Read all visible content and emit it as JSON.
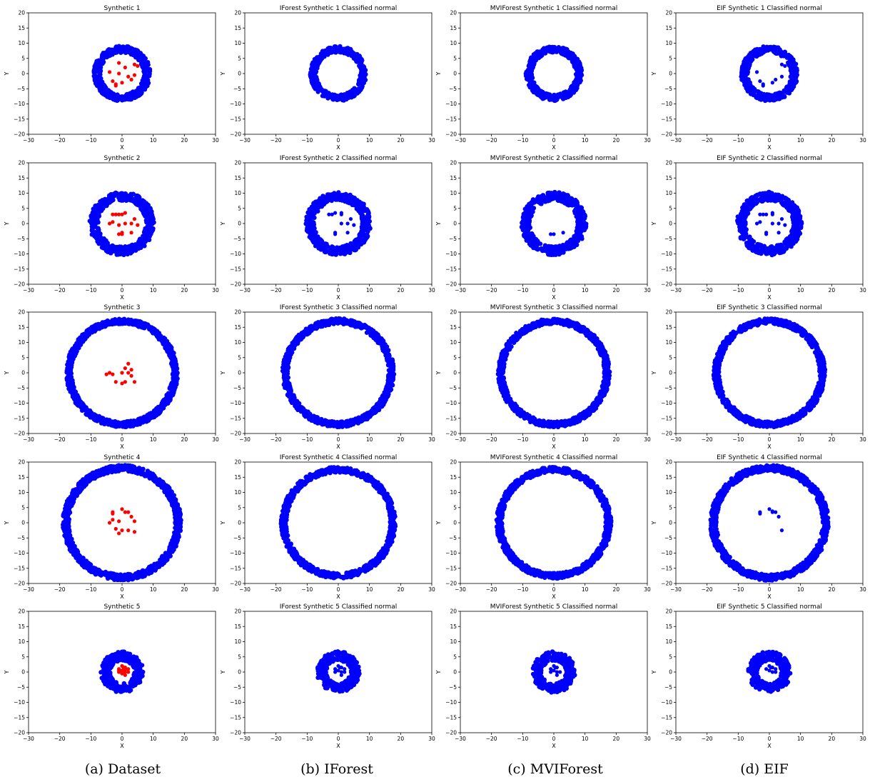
{
  "columns": [
    {
      "caption": "(a) Dataset"
    },
    {
      "caption": "(b) IForest"
    },
    {
      "caption": "(c) MVIForest"
    },
    {
      "caption": "(d) EIF"
    }
  ],
  "colors": {
    "normal": "#0000ff",
    "anomaly": "#ff0000"
  },
  "chart_data": [
    {
      "type": "scatter",
      "title": "Synthetic 1",
      "xlabel": "X",
      "ylabel": "Y",
      "xlim": [
        -30,
        30
      ],
      "ylim": [
        -20,
        20
      ],
      "xticks": [
        -30,
        -20,
        -10,
        0,
        10,
        20,
        30
      ],
      "yticks": [
        -20,
        -15,
        -10,
        -5,
        0,
        5,
        10,
        15,
        20
      ],
      "ring": {
        "radius": 8,
        "width": 2.2
      },
      "points_color": "anomaly",
      "points": [
        [
          -4,
          0.5
        ],
        [
          -1,
          3.5
        ],
        [
          4,
          3
        ],
        [
          5,
          2.5
        ],
        [
          1,
          2
        ],
        [
          -3,
          -2.5
        ],
        [
          -2,
          -3.5
        ],
        [
          -1,
          0
        ],
        [
          2,
          -1
        ],
        [
          3,
          -2
        ],
        [
          0,
          -3
        ],
        [
          4,
          -0.5
        ],
        [
          -2,
          -4
        ]
      ]
    },
    {
      "type": "scatter",
      "title": "IForest Synthetic 1 Classified normal",
      "xlabel": "X",
      "ylabel": "Y",
      "xlim": [
        -30,
        30
      ],
      "ylim": [
        -20,
        20
      ],
      "xticks": [
        -30,
        -20,
        -10,
        0,
        10,
        20,
        30
      ],
      "yticks": [
        -20,
        -15,
        -10,
        -5,
        0,
        5,
        10,
        15,
        20
      ],
      "ring": {
        "radius": 8,
        "width": 2
      },
      "points_color": "normal",
      "points": []
    },
    {
      "type": "scatter",
      "title": "MVIForest Synthetic 1 Classified normal",
      "xlabel": "X",
      "ylabel": "Y",
      "xlim": [
        -30,
        30
      ],
      "ylim": [
        -20,
        20
      ],
      "xticks": [
        -30,
        -20,
        -10,
        0,
        10,
        20,
        30
      ],
      "yticks": [
        -20,
        -15,
        -10,
        -5,
        0,
        5,
        10,
        15,
        20
      ],
      "ring": {
        "radius": 8,
        "width": 2
      },
      "points_color": "normal",
      "points": []
    },
    {
      "type": "scatter",
      "title": "EIF Synthetic 1 Classified normal",
      "xlabel": "X",
      "ylabel": "Y",
      "xlim": [
        -30,
        30
      ],
      "ylim": [
        -20,
        20
      ],
      "xticks": [
        -30,
        -20,
        -10,
        0,
        10,
        20,
        30
      ],
      "yticks": [
        -20,
        -15,
        -10,
        -5,
        0,
        5,
        10,
        15,
        20
      ],
      "ring": {
        "radius": 8,
        "width": 2.2
      },
      "points_color": "normal",
      "points": [
        [
          -4,
          0.5
        ],
        [
          4,
          3
        ],
        [
          5,
          2.5
        ],
        [
          1,
          -3
        ],
        [
          2,
          -2
        ],
        [
          -3,
          -2.5
        ],
        [
          -2,
          -3.5
        ],
        [
          4,
          -1
        ],
        [
          -2,
          -4
        ]
      ]
    },
    {
      "type": "scatter",
      "title": "Synthetic 2",
      "xlabel": "X",
      "ylabel": "Y",
      "xlim": [
        -30,
        30
      ],
      "ylim": [
        -20,
        20
      ],
      "xticks": [
        -30,
        -20,
        -10,
        0,
        10,
        20,
        30
      ],
      "yticks": [
        -20,
        -15,
        -10,
        -5,
        0,
        5,
        10,
        15,
        20
      ],
      "ring": {
        "radius": 9,
        "width": 2.8
      },
      "points_color": "anomaly",
      "points": [
        [
          -3,
          3
        ],
        [
          -2,
          3
        ],
        [
          0,
          3
        ],
        [
          1,
          3.5
        ],
        [
          -1,
          3
        ],
        [
          4,
          1.5
        ],
        [
          3,
          0
        ],
        [
          5,
          -0.5
        ],
        [
          -4,
          0
        ],
        [
          -3,
          0.5
        ],
        [
          -1,
          -0.5
        ],
        [
          1,
          0
        ],
        [
          0,
          -3
        ],
        [
          -1,
          -3.5
        ],
        [
          3,
          -3
        ],
        [
          0,
          -3.5
        ]
      ]
    },
    {
      "type": "scatter",
      "title": "IForest Synthetic 2 Classified normal",
      "xlabel": "X",
      "ylabel": "Y",
      "xlim": [
        -30,
        30
      ],
      "ylim": [
        -20,
        20
      ],
      "xticks": [
        -30,
        -20,
        -10,
        0,
        10,
        20,
        30
      ],
      "yticks": [
        -20,
        -15,
        -10,
        -5,
        0,
        5,
        10,
        15,
        20
      ],
      "ring": {
        "radius": 9,
        "width": 2.8
      },
      "points_color": "normal",
      "points": [
        [
          -3,
          3
        ],
        [
          -2,
          3
        ],
        [
          -1,
          3.5
        ],
        [
          1,
          3
        ],
        [
          1,
          3.5
        ],
        [
          4,
          1.5
        ],
        [
          3,
          0
        ],
        [
          5,
          -0.5
        ],
        [
          1,
          0
        ],
        [
          -1,
          -3
        ],
        [
          -1,
          -3.5
        ],
        [
          3,
          -3
        ]
      ]
    },
    {
      "type": "scatter",
      "title": "MVIForest Synthetic 2 Classified normal",
      "xlabel": "X",
      "ylabel": "Y",
      "xlim": [
        -30,
        30
      ],
      "ylim": [
        -20,
        20
      ],
      "xticks": [
        -30,
        -20,
        -10,
        0,
        10,
        20,
        30
      ],
      "yticks": [
        -20,
        -15,
        -10,
        -5,
        0,
        5,
        10,
        15,
        20
      ],
      "ring": {
        "radius": 9,
        "width": 2.8
      },
      "points_color": "normal",
      "points": [
        [
          -1,
          -3.5
        ],
        [
          0,
          -3.5
        ],
        [
          3,
          -3
        ]
      ]
    },
    {
      "type": "scatter",
      "title": "EIF Synthetic 2 Classified normal",
      "xlabel": "X",
      "ylabel": "Y",
      "xlim": [
        -30,
        30
      ],
      "ylim": [
        -20,
        20
      ],
      "xticks": [
        -30,
        -20,
        -10,
        0,
        10,
        20,
        30
      ],
      "yticks": [
        -20,
        -15,
        -10,
        -5,
        0,
        5,
        10,
        15,
        20
      ],
      "ring": {
        "radius": 9,
        "width": 2.8
      },
      "points_color": "normal",
      "points": [
        [
          -3,
          3
        ],
        [
          -2,
          3
        ],
        [
          -1,
          3
        ],
        [
          1,
          3
        ],
        [
          1,
          3.5
        ],
        [
          4,
          1.5
        ],
        [
          3,
          0
        ],
        [
          5,
          -0.5
        ],
        [
          -4,
          0
        ],
        [
          -3,
          0.5
        ],
        [
          1,
          0
        ],
        [
          -1,
          -3
        ],
        [
          -1,
          -3.5
        ],
        [
          3,
          -3
        ]
      ]
    },
    {
      "type": "scatter",
      "title": "Synthetic 3",
      "xlabel": "X",
      "ylabel": "Y",
      "xlim": [
        -30,
        30
      ],
      "ylim": [
        -20,
        20
      ],
      "xticks": [
        -30,
        -20,
        -10,
        0,
        10,
        20,
        30
      ],
      "yticks": [
        -20,
        -15,
        -10,
        -5,
        0,
        5,
        10,
        15,
        20
      ],
      "ring": {
        "radius": 17,
        "width": 1.8
      },
      "points_color": "anomaly",
      "points": [
        [
          -5,
          -0.5
        ],
        [
          -4,
          0
        ],
        [
          -3,
          -0.5
        ],
        [
          1,
          1.5
        ],
        [
          2,
          3
        ],
        [
          3,
          1
        ],
        [
          2,
          0
        ],
        [
          3,
          -1
        ],
        [
          0,
          0
        ],
        [
          -2,
          -3
        ],
        [
          0,
          -3.5
        ],
        [
          1,
          -3
        ],
        [
          4,
          -3
        ]
      ]
    },
    {
      "type": "scatter",
      "title": "IForest Synthetic 3 Classified normal",
      "xlabel": "X",
      "ylabel": "Y",
      "xlim": [
        -30,
        30
      ],
      "ylim": [
        -20,
        20
      ],
      "xticks": [
        -30,
        -20,
        -10,
        0,
        10,
        20,
        30
      ],
      "yticks": [
        -20,
        -15,
        -10,
        -5,
        0,
        5,
        10,
        15,
        20
      ],
      "ring": {
        "radius": 17,
        "width": 1.8
      },
      "points_color": "normal",
      "points": []
    },
    {
      "type": "scatter",
      "title": "MVIForest Synthetic 3 Classified normal",
      "xlabel": "X",
      "ylabel": "Y",
      "xlim": [
        -30,
        30
      ],
      "ylim": [
        -20,
        20
      ],
      "xticks": [
        -30,
        -20,
        -10,
        0,
        10,
        20,
        30
      ],
      "yticks": [
        -20,
        -15,
        -10,
        -5,
        0,
        5,
        10,
        15,
        20
      ],
      "ring": {
        "radius": 17,
        "width": 1.8
      },
      "points_color": "normal",
      "points": []
    },
    {
      "type": "scatter",
      "title": "EIF Synthetic 3 Classified normal",
      "xlabel": "X",
      "ylabel": "Y",
      "xlim": [
        -30,
        30
      ],
      "ylim": [
        -20,
        20
      ],
      "xticks": [
        -30,
        -20,
        -10,
        0,
        10,
        20,
        30
      ],
      "yticks": [
        -20,
        -15,
        -10,
        -5,
        0,
        5,
        10,
        15,
        20
      ],
      "ring": {
        "radius": 17,
        "width": 1.8
      },
      "points_color": "normal",
      "points": []
    },
    {
      "type": "scatter",
      "title": "Synthetic 4",
      "xlabel": "X",
      "ylabel": "Y",
      "xlim": [
        -30,
        30
      ],
      "ylim": [
        -20,
        20
      ],
      "xticks": [
        -30,
        -20,
        -10,
        0,
        10,
        20,
        30
      ],
      "yticks": [
        -20,
        -15,
        -10,
        -5,
        0,
        5,
        10,
        15,
        20
      ],
      "ring": {
        "radius": 18,
        "width": 2
      },
      "points_color": "anomaly",
      "points": [
        [
          -3,
          3.5
        ],
        [
          -3,
          3
        ],
        [
          0,
          4.5
        ],
        [
          1,
          3.5
        ],
        [
          2,
          3.5
        ],
        [
          3,
          2
        ],
        [
          4,
          0.5
        ],
        [
          -4,
          0
        ],
        [
          -3,
          1
        ],
        [
          -1,
          0.5
        ],
        [
          -2,
          -2
        ],
        [
          0,
          -2.5
        ],
        [
          2,
          -2.5
        ],
        [
          4,
          -3
        ],
        [
          -1,
          -3.5
        ]
      ]
    },
    {
      "type": "scatter",
      "title": "IForest Synthetic 4 Classified normal",
      "xlabel": "X",
      "ylabel": "Y",
      "xlim": [
        -30,
        30
      ],
      "ylim": [
        -20,
        20
      ],
      "xticks": [
        -30,
        -20,
        -10,
        0,
        10,
        20,
        30
      ],
      "yticks": [
        -20,
        -15,
        -10,
        -5,
        0,
        5,
        10,
        15,
        20
      ],
      "ring": {
        "radius": 17.5,
        "width": 1.8
      },
      "points_color": "normal",
      "points": []
    },
    {
      "type": "scatter",
      "title": "MVIForest Synthetic 4 Classified normal",
      "xlabel": "X",
      "ylabel": "Y",
      "xlim": [
        -30,
        30
      ],
      "ylim": [
        -20,
        20
      ],
      "xticks": [
        -30,
        -20,
        -10,
        0,
        10,
        20,
        30
      ],
      "yticks": [
        -20,
        -15,
        -10,
        -5,
        0,
        5,
        10,
        15,
        20
      ],
      "ring": {
        "radius": 17.5,
        "width": 1.8
      },
      "points_color": "normal",
      "points": []
    },
    {
      "type": "scatter",
      "title": "EIF Synthetic 4 Classified normal",
      "xlabel": "X",
      "ylabel": "Y",
      "xlim": [
        -30,
        30
      ],
      "ylim": [
        -20,
        20
      ],
      "xticks": [
        -30,
        -20,
        -10,
        0,
        10,
        20,
        30
      ],
      "yticks": [
        -20,
        -15,
        -10,
        -5,
        0,
        5,
        10,
        15,
        20
      ],
      "ring": {
        "radius": 18,
        "width": 2
      },
      "points_color": "normal",
      "points": [
        [
          -3,
          3.5
        ],
        [
          -3,
          3
        ],
        [
          0,
          4.5
        ],
        [
          1,
          3.5
        ],
        [
          2,
          3.5
        ],
        [
          3,
          2
        ],
        [
          4,
          -2.5
        ],
        [
          1,
          3.8
        ]
      ]
    },
    {
      "type": "scatter",
      "title": "Synthetic 5",
      "xlabel": "X",
      "ylabel": "Y",
      "xlim": [
        -30,
        30
      ],
      "ylim": [
        -20,
        20
      ],
      "xticks": [
        -30,
        -20,
        -10,
        0,
        10,
        20,
        30
      ],
      "yticks": [
        -20,
        -15,
        -10,
        -5,
        0,
        5,
        10,
        15,
        20
      ],
      "ring": {
        "radius": 5.3,
        "width": 3
      },
      "points_color": "anomaly",
      "points": [
        [
          -1,
          1
        ],
        [
          0,
          2
        ],
        [
          1,
          1.5
        ],
        [
          2,
          1
        ],
        [
          -1,
          0
        ],
        [
          0,
          0.5
        ],
        [
          1,
          0
        ],
        [
          2,
          0
        ],
        [
          0,
          -0.5
        ],
        [
          1,
          -1
        ],
        [
          -1,
          0.5
        ],
        [
          1,
          0.8
        ],
        [
          0.5,
          1.5
        ]
      ]
    },
    {
      "type": "scatter",
      "title": "IForest Synthetic 5 Classified normal",
      "xlabel": "X",
      "ylabel": "Y",
      "xlim": [
        -30,
        30
      ],
      "ylim": [
        -20,
        20
      ],
      "xticks": [
        -30,
        -20,
        -10,
        0,
        10,
        20,
        30
      ],
      "yticks": [
        -20,
        -15,
        -10,
        -5,
        0,
        5,
        10,
        15,
        20
      ],
      "ring": {
        "radius": 5.3,
        "width": 3
      },
      "points_color": "normal",
      "points": [
        [
          -1,
          1
        ],
        [
          0,
          2
        ],
        [
          1,
          1.5
        ],
        [
          2,
          1
        ],
        [
          -1,
          0
        ],
        [
          0,
          0.5
        ],
        [
          1,
          0
        ],
        [
          2,
          0
        ],
        [
          1,
          -1
        ],
        [
          0.5,
          1.5
        ]
      ]
    },
    {
      "type": "scatter",
      "title": "MVIForest Synthetic 5 Classified normal",
      "xlabel": "X",
      "ylabel": "Y",
      "xlim": [
        -30,
        30
      ],
      "ylim": [
        -20,
        20
      ],
      "xticks": [
        -30,
        -20,
        -10,
        0,
        10,
        20,
        30
      ],
      "yticks": [
        -20,
        -15,
        -10,
        -5,
        0,
        5,
        10,
        15,
        20
      ],
      "ring": {
        "radius": 5.3,
        "width": 3
      },
      "points_color": "normal",
      "points": [
        [
          -1,
          1
        ],
        [
          0,
          2
        ],
        [
          1,
          1.5
        ],
        [
          2,
          0
        ],
        [
          -1,
          0
        ],
        [
          0,
          0.5
        ],
        [
          1,
          0
        ],
        [
          1,
          -1
        ],
        [
          0.5,
          1.5
        ]
      ]
    },
    {
      "type": "scatter",
      "title": "EIF Synthetic 5 Classified normal",
      "xlabel": "X",
      "ylabel": "Y",
      "xlim": [
        -30,
        30
      ],
      "ylim": [
        -20,
        20
      ],
      "xticks": [
        -30,
        -20,
        -10,
        0,
        10,
        20,
        30
      ],
      "yticks": [
        -20,
        -15,
        -10,
        -5,
        0,
        5,
        10,
        15,
        20
      ],
      "ring": {
        "radius": 5.3,
        "width": 3
      },
      "points_color": "normal",
      "points": [
        [
          -1,
          1
        ],
        [
          0,
          2
        ],
        [
          1,
          1.5
        ],
        [
          2,
          1
        ],
        [
          0,
          0.5
        ],
        [
          1,
          0
        ],
        [
          2,
          0
        ],
        [
          0.5,
          1.5
        ]
      ]
    }
  ]
}
